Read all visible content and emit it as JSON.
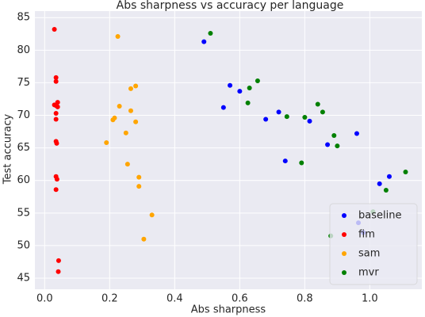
{
  "chart_data": {
    "type": "scatter",
    "title": "Abs sharpness vs accuracy per language",
    "x_label": "Abs sharpness",
    "y_label": "Test accuracy",
    "xlim": [
      -0.03,
      1.16
    ],
    "ylim": [
      43.3,
      86
    ],
    "xticks": [
      {
        "value": 0,
        "label": "0.0"
      },
      {
        "value": 0.2,
        "label": "0.2"
      },
      {
        "value": 0.4,
        "label": "0.4"
      },
      {
        "value": 0.6,
        "label": "0.6"
      },
      {
        "value": 0.8,
        "label": "0.8"
      },
      {
        "value": 1,
        "label": "1.0"
      }
    ],
    "yticks": [
      45,
      50,
      55,
      60,
      65,
      70,
      75,
      80,
      85
    ],
    "grid": true,
    "legend": "lower right",
    "series": [
      {
        "name": "baseline",
        "color": "#0000ff",
        "x": [
          0.49,
          0.57,
          0.6,
          0.55,
          0.72,
          0.68,
          0.815,
          0.87,
          0.74,
          0.96,
          1.06,
          1.03,
          0.965,
          0.98
        ],
        "values": [
          81.3,
          74.6,
          73.7,
          71.2,
          70.5,
          69.4,
          69.1,
          65.5,
          63.0,
          67.2,
          60.6,
          59.5,
          53.5,
          52.0
        ]
      },
      {
        "name": "fim",
        "color": "#ff0000",
        "x": [
          0.03,
          0.035,
          0.035,
          0.04,
          0.03,
          0.035,
          0.04,
          0.035,
          0.035,
          0.035,
          0.037,
          0.035,
          0.038,
          0.035,
          0.043,
          0.042
        ],
        "values": [
          83.2,
          75.8,
          75.2,
          72.0,
          71.6,
          71.5,
          71.3,
          70.3,
          69.4,
          66.0,
          65.7,
          60.6,
          60.2,
          58.6,
          47.7,
          46.0
        ]
      },
      {
        "name": "sam",
        "color": "#ffa500",
        "x": [
          0.225,
          0.28,
          0.265,
          0.23,
          0.265,
          0.21,
          0.215,
          0.28,
          0.25,
          0.19,
          0.255,
          0.29,
          0.29,
          0.33,
          0.305
        ],
        "values": [
          82.1,
          74.5,
          74.1,
          71.4,
          70.7,
          69.3,
          69.6,
          69.0,
          67.3,
          65.8,
          62.5,
          60.5,
          59.1,
          54.7,
          51.0
        ]
      },
      {
        "name": "mvr",
        "color": "#008000",
        "x": [
          0.51,
          0.63,
          0.655,
          0.625,
          0.745,
          0.84,
          0.855,
          0.8,
          0.89,
          0.9,
          0.79,
          1.05,
          1.11,
          0.88,
          1.01
        ],
        "values": [
          82.6,
          74.2,
          75.3,
          71.9,
          69.8,
          71.7,
          70.5,
          69.7,
          66.9,
          65.3,
          62.7,
          58.5,
          61.3,
          51.5,
          55.2
        ]
      }
    ]
  }
}
